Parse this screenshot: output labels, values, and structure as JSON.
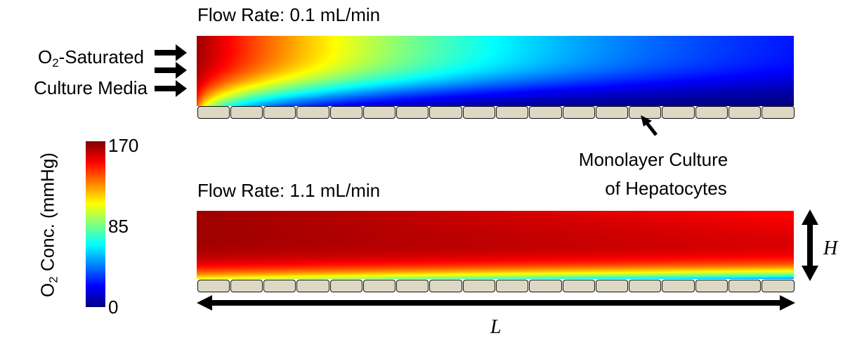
{
  "top_panel": {
    "title": "Flow Rate: 0.1 mL/min",
    "flow_rate_ml_min": 0.1
  },
  "bottom_panel": {
    "title": "Flow Rate: 1.1 mL/min",
    "flow_rate_ml_min": 1.1
  },
  "inlet_label": {
    "line1_prefix": "O",
    "line1_sub": "2",
    "line1_suffix": "-Saturated",
    "line2": "Culture Media"
  },
  "cell_label": {
    "line1": "Monolayer Culture",
    "line2": "of Hepatocytes"
  },
  "cell_count": 18,
  "colorbar": {
    "label_prefix": "O",
    "label_sub": "2",
    "label_suffix": " Conc. (mmHg)",
    "max": "170",
    "mid": "85",
    "min": "0",
    "colormap": "jet"
  },
  "dimensions": {
    "height_label": "H",
    "length_label": "L"
  },
  "colors": {
    "cell_fill": "#ddd8c4",
    "outline": "#111111"
  }
}
